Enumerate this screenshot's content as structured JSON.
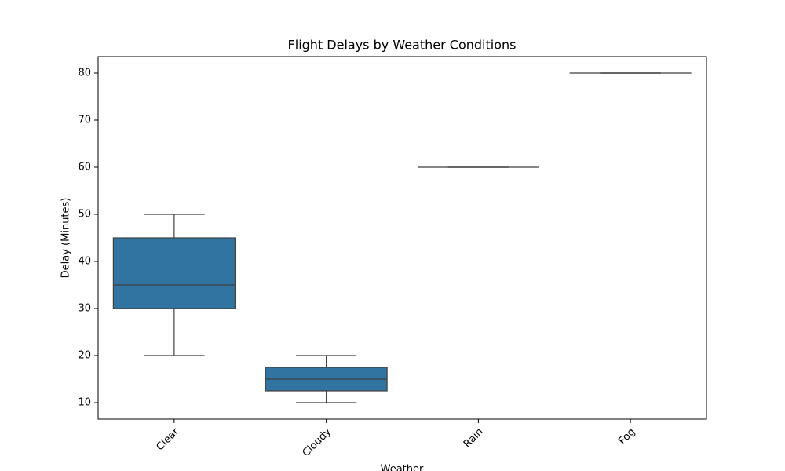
{
  "chart_data": {
    "type": "box",
    "title": "Flight Delays by Weather Conditions",
    "xlabel": "Weather",
    "ylabel": "Delay (Minutes)",
    "categories": [
      "Clear",
      "Cloudy",
      "Rain",
      "Fog"
    ],
    "boxes": [
      {
        "min": 20,
        "q1": 30,
        "median": 35,
        "q3": 45,
        "max": 50
      },
      {
        "min": 10,
        "q1": 12.5,
        "median": 15,
        "q3": 17.5,
        "max": 20
      },
      {
        "min": 60,
        "q1": 60,
        "median": 60,
        "q3": 60,
        "max": 60
      },
      {
        "min": 80,
        "q1": 80,
        "median": 80,
        "q3": 80,
        "max": 80
      }
    ],
    "color": "#3274a1",
    "line_color": "#3f3f3f",
    "ylim": [
      6.5,
      83.5
    ],
    "yticks": [
      10,
      20,
      30,
      40,
      50,
      60,
      70,
      80
    ],
    "grid": false
  }
}
